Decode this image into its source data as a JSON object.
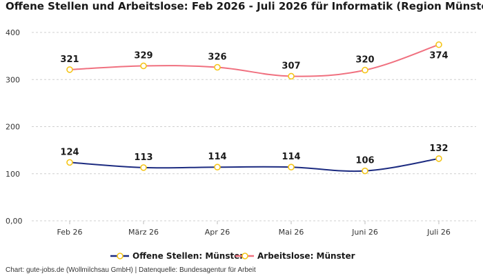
{
  "title": "Offene Stellen und Arbeitslose: Feb 2026 - Juli 2026 für Informatik (Region Münster)",
  "footer": "Chart: gute-jobs.de (Wollmilchsau GmbH) | Datenquelle: Bundesagentur für Arbeit",
  "chart_data": {
    "type": "line",
    "categories": [
      "Feb 26",
      "März 26",
      "Apr 26",
      "Mai 26",
      "Juni 26",
      "Juli 26"
    ],
    "series": [
      {
        "name": "Offene Stellen: Münster",
        "values": [
          124,
          113,
          114,
          114,
          106,
          132
        ],
        "color": "#1b2a80"
      },
      {
        "name": "Arbeitslose: Münster",
        "values": [
          321,
          329,
          326,
          307,
          320,
          374
        ],
        "color": "#f0707f"
      }
    ],
    "yticks": [
      {
        "value": 0,
        "label": "0,00"
      },
      {
        "value": 100,
        "label": "100"
      },
      {
        "value": 200,
        "label": "200"
      },
      {
        "value": 300,
        "label": "300"
      },
      {
        "value": 400,
        "label": "400"
      }
    ],
    "ylim": [
      0,
      400
    ],
    "grid": true,
    "legend_position": "bottom",
    "marker_color": "#f5c518",
    "title": "Offene Stellen und Arbeitslose: Feb 2026 - Juli 2026 für Informatik (Region Münster)",
    "xlabel": "",
    "ylabel": ""
  }
}
